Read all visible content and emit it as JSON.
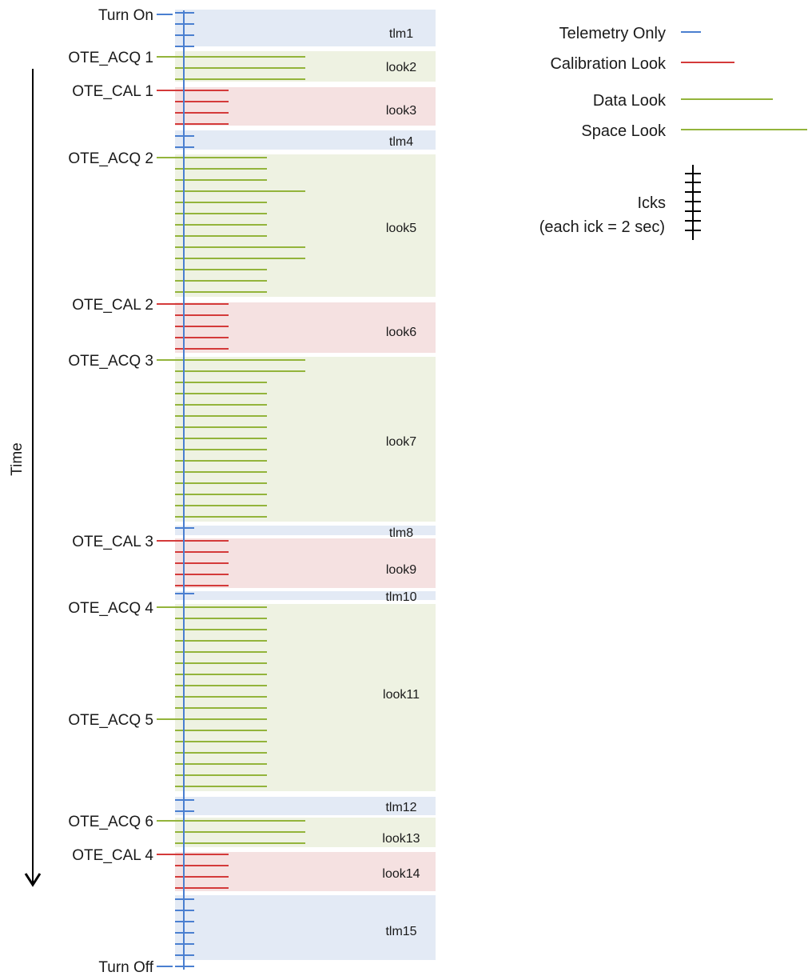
{
  "colors": {
    "telemetry_bg": "#e3eaf5",
    "calibration_bg": "#f5e1e1",
    "look_bg": "#eef2e2",
    "timeline": "#4a7fd0",
    "calibration_line": "#d43a3a",
    "data_line": "#93b43b",
    "space_line": "#93b43b",
    "ick_mark": "#000000"
  },
  "axis_label": "Time",
  "events": [
    {
      "label": "Turn On",
      "kind": "telemetry"
    },
    {
      "label": "OTE_ACQ 1",
      "kind": "look"
    },
    {
      "label": "OTE_CAL 1",
      "kind": "calibration"
    },
    {
      "label": "OTE_ACQ 2",
      "kind": "look"
    },
    {
      "label": "OTE_CAL 2",
      "kind": "calibration"
    },
    {
      "label": "OTE_ACQ 3",
      "kind": "look"
    },
    {
      "label": "OTE_CAL 3",
      "kind": "calibration"
    },
    {
      "label": "OTE_ACQ 4",
      "kind": "look"
    },
    {
      "label": "OTE_ACQ 5",
      "kind": "look"
    },
    {
      "label": "OTE_ACQ 6",
      "kind": "look"
    },
    {
      "label": "OTE_CAL 4",
      "kind": "calibration"
    },
    {
      "label": "Turn Off",
      "kind": "telemetry"
    }
  ],
  "blocks": [
    {
      "label": "tlm1",
      "kind": "telemetry"
    },
    {
      "label": "look2",
      "kind": "look"
    },
    {
      "label": "look3",
      "kind": "calibration"
    },
    {
      "label": "tlm4",
      "kind": "telemetry"
    },
    {
      "label": "look5",
      "kind": "look"
    },
    {
      "label": "look6",
      "kind": "calibration"
    },
    {
      "label": "look7",
      "kind": "look"
    },
    {
      "label": "tlm8",
      "kind": "telemetry"
    },
    {
      "label": "look9",
      "kind": "calibration"
    },
    {
      "label": "tlm10",
      "kind": "telemetry"
    },
    {
      "label": "look11",
      "kind": "look"
    },
    {
      "label": "tlm12",
      "kind": "telemetry"
    },
    {
      "label": "look13",
      "kind": "look"
    },
    {
      "label": "look14",
      "kind": "calibration"
    },
    {
      "label": "tlm15",
      "kind": "telemetry"
    }
  ],
  "legend": {
    "telemetry_only": "Telemetry Only",
    "calibration_look": "Calibration Look",
    "data_look": "Data Look",
    "space_look": "Space Look",
    "icks": "Icks",
    "icks_note": "(each ick = 2 sec)"
  }
}
